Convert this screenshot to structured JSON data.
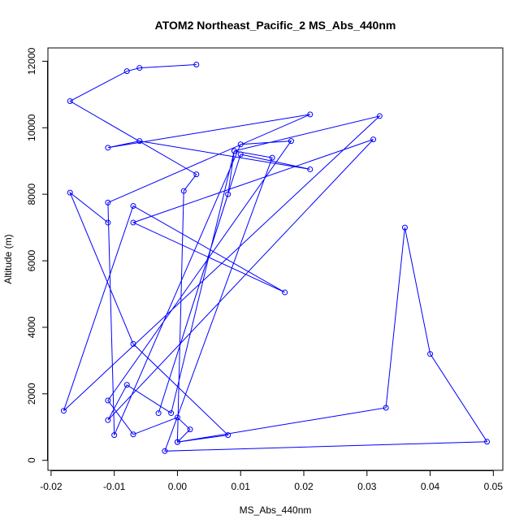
{
  "chart_data": {
    "type": "line",
    "title": "ATOM2 Northeast_Pacific_2 MS_Abs_440nm",
    "xlabel": "MS_Abs_440nm",
    "ylabel": "Altitude (m)",
    "xlim": [
      -0.0205,
      0.0515
    ],
    "ylim": [
      -300,
      12400
    ],
    "xticks": [
      -0.02,
      -0.01,
      0.0,
      0.01,
      0.02,
      0.03,
      0.04,
      0.05
    ],
    "xtick_labels": [
      "-0.02",
      "-0.01",
      "0.00",
      "0.01",
      "0.02",
      "0.03",
      "0.04",
      "0.05"
    ],
    "yticks": [
      0,
      2000,
      4000,
      6000,
      8000,
      10000,
      12000
    ],
    "ytick_labels": [
      "0",
      "2000",
      "4000",
      "6000",
      "8000",
      "10000",
      "12000"
    ],
    "grid": false,
    "series": [
      {
        "color": "#0000ff",
        "marker": "open-circle",
        "x": [
          0.003,
          -0.006,
          -0.008,
          -0.017,
          0.003,
          0.001,
          0.0,
          0.002,
          0.0,
          -0.007,
          -0.011,
          0.018,
          0.01,
          -0.01,
          -0.011,
          0.021,
          -0.011,
          -0.006,
          0.021,
          0.01,
          -0.003,
          0.008,
          0.009,
          -0.001,
          -0.008,
          -0.011,
          0.031,
          -0.007,
          0.017,
          -0.007,
          -0.018,
          0.032,
          0.009,
          0.015,
          -0.002,
          0.049,
          0.04,
          0.036,
          0.033,
          0.0,
          0.008,
          -0.007,
          -0.017,
          -0.011
        ],
        "y": [
          11900,
          11800,
          11700,
          10800,
          8600,
          8100,
          550,
          930,
          1290,
          780,
          1800,
          9600,
          9500,
          760,
          7750,
          10400,
          9400,
          9600,
          8750,
          9200,
          1420,
          8000,
          9300,
          1420,
          2270,
          1210,
          9650,
          7150,
          5050,
          7650,
          1490,
          10350,
          9300,
          9100,
          280,
          560,
          3200,
          7000,
          1580,
          550,
          760,
          3500,
          8050,
          7150
        ]
      }
    ]
  }
}
